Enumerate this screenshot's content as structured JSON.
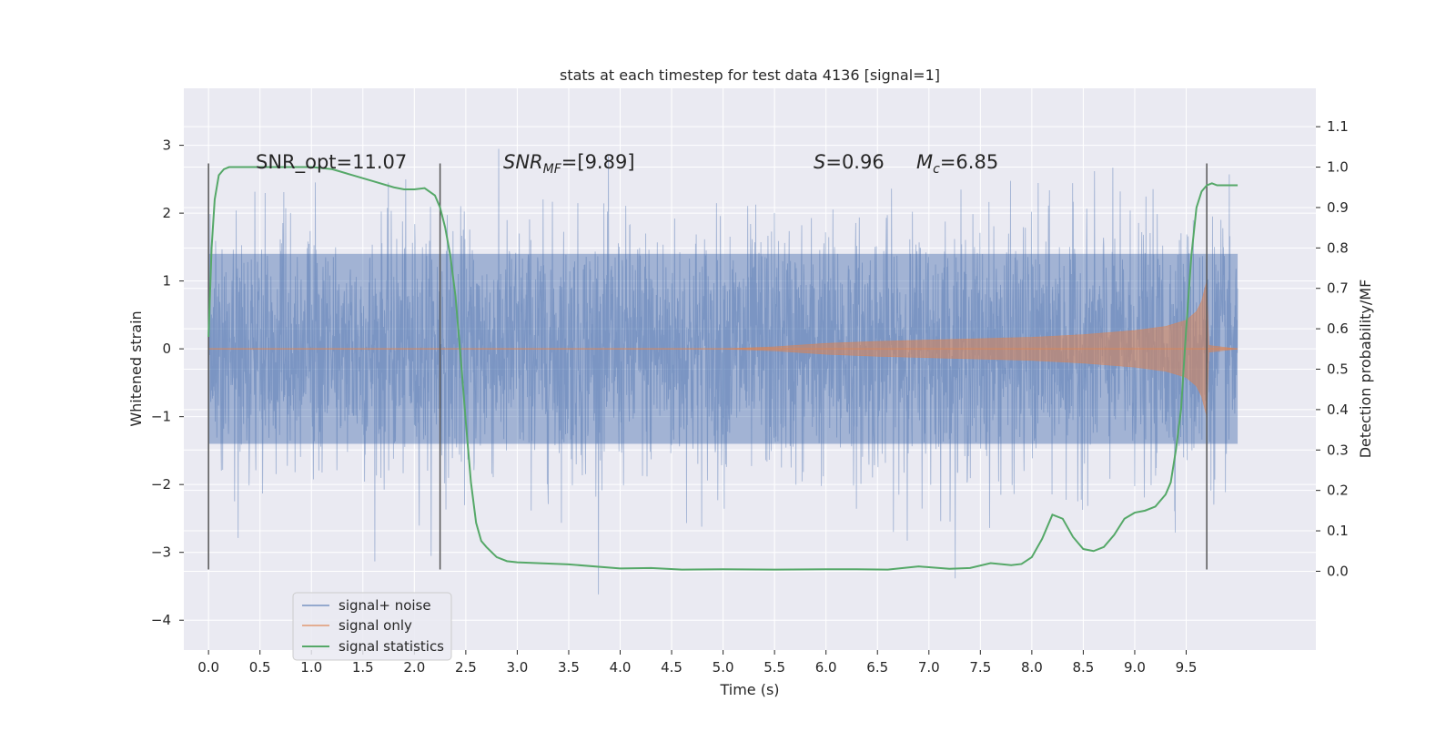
{
  "chart_data": {
    "type": "line",
    "title": "stats at each timestep for test data 4136 [signal=1]",
    "xlabel": "Time (s)",
    "ylabel": "Whitened strain",
    "y2label": "Detection probability/MF",
    "xlim": [
      -0.24,
      10.76
    ],
    "ylim": [
      -4.44,
      3.84
    ],
    "y2lim": [
      -0.195,
      1.195
    ],
    "x_ticks": [
      "0.0",
      "0.5",
      "1.0",
      "1.5",
      "2.0",
      "2.5",
      "3.0",
      "3.5",
      "4.0",
      "4.5",
      "5.0",
      "5.5",
      "6.0",
      "6.5",
      "7.0",
      "7.5",
      "8.0",
      "8.5",
      "9.0",
      "9.5"
    ],
    "x_tick_values": [
      0.0,
      0.5,
      1.0,
      1.5,
      2.0,
      2.5,
      3.0,
      3.5,
      4.0,
      4.5,
      5.0,
      5.5,
      6.0,
      6.5,
      7.0,
      7.5,
      8.0,
      8.5,
      9.0,
      9.5
    ],
    "y_ticks": [
      "3",
      "2",
      "1",
      "0",
      "−1",
      "−2",
      "−3",
      "−4"
    ],
    "y_tick_values": [
      3,
      2,
      1,
      0,
      -1,
      -2,
      -3,
      -4
    ],
    "y2_ticks": [
      "1.1",
      "1.0",
      "0.9",
      "0.8",
      "0.7",
      "0.6",
      "0.5",
      "0.4",
      "0.3",
      "0.2",
      "0.1",
      "0.0"
    ],
    "y2_tick_values": [
      1.1,
      1.0,
      0.9,
      0.8,
      0.7,
      0.6,
      0.5,
      0.4,
      0.3,
      0.2,
      0.1,
      0.0
    ],
    "grid": true,
    "legend_placement": "lower-left",
    "legend": [
      "signal+ noise",
      "signal only",
      "signal statistics"
    ],
    "annotations": {
      "snr_opt": "SNR_opt=11.07",
      "snr_mf_prefix": "SNR",
      "snr_mf_sub": "MF",
      "snr_mf_value": "=[9.89]",
      "s_label": "S",
      "s_value": "=0.96",
      "mc_label": "M",
      "mc_sub": "c",
      "mc_value": "=6.85"
    },
    "vertical_lines_x": [
      0.0,
      2.25,
      9.7
    ],
    "series": [
      {
        "name": "signal+ noise",
        "color": "#4c72b0",
        "x_range": [
          0.0,
          10.0
        ],
        "y_range": [
          -4.1,
          3.5
        ],
        "typical_band": [
          -1.4,
          1.4
        ]
      },
      {
        "name": "signal only",
        "color": "#dd8452",
        "x_range": [
          0.0,
          10.0
        ],
        "envelope": [
          [
            0.0,
            0.0
          ],
          [
            5.0,
            0.0
          ],
          [
            5.5,
            0.03
          ],
          [
            6.0,
            0.08
          ],
          [
            6.5,
            0.11
          ],
          [
            7.0,
            0.13
          ],
          [
            7.5,
            0.15
          ],
          [
            8.0,
            0.17
          ],
          [
            8.5,
            0.21
          ],
          [
            9.0,
            0.27
          ],
          [
            9.3,
            0.33
          ],
          [
            9.5,
            0.42
          ],
          [
            9.6,
            0.55
          ],
          [
            9.65,
            0.7
          ],
          [
            9.7,
            1.0
          ],
          [
            9.72,
            0.05
          ],
          [
            10.0,
            0.0
          ]
        ]
      },
      {
        "name": "signal statistics",
        "color": "#55a868",
        "x": [
          0.0,
          0.03,
          0.06,
          0.1,
          0.15,
          0.2,
          0.3,
          0.5,
          0.8,
          1.0,
          1.2,
          1.4,
          1.6,
          1.8,
          1.9,
          2.0,
          2.1,
          2.2,
          2.25,
          2.3,
          2.35,
          2.4,
          2.45,
          2.5,
          2.55,
          2.6,
          2.65,
          2.7,
          2.8,
          2.9,
          3.0,
          3.5,
          4.0,
          4.3,
          4.6,
          5.0,
          5.5,
          6.0,
          6.3,
          6.6,
          6.9,
          7.2,
          7.4,
          7.6,
          7.8,
          7.9,
          8.0,
          8.1,
          8.2,
          8.3,
          8.4,
          8.5,
          8.6,
          8.7,
          8.8,
          8.9,
          9.0,
          9.1,
          9.2,
          9.3,
          9.35,
          9.4,
          9.45,
          9.5,
          9.55,
          9.6,
          9.65,
          9.7,
          9.75,
          9.8,
          9.85,
          9.9,
          9.95,
          10.0
        ],
        "y": [
          0.58,
          0.8,
          0.92,
          0.98,
          0.995,
          1.0,
          1.0,
          1.0,
          1.0,
          1.0,
          0.995,
          0.98,
          0.965,
          0.95,
          0.945,
          0.945,
          0.948,
          0.93,
          0.9,
          0.85,
          0.78,
          0.68,
          0.53,
          0.37,
          0.22,
          0.12,
          0.075,
          0.06,
          0.035,
          0.025,
          0.022,
          0.017,
          0.007,
          0.008,
          0.004,
          0.005,
          0.004,
          0.005,
          0.005,
          0.004,
          0.012,
          0.006,
          0.008,
          0.02,
          0.015,
          0.018,
          0.035,
          0.08,
          0.14,
          0.13,
          0.085,
          0.055,
          0.05,
          0.06,
          0.09,
          0.13,
          0.145,
          0.15,
          0.16,
          0.19,
          0.22,
          0.3,
          0.4,
          0.6,
          0.78,
          0.9,
          0.94,
          0.955,
          0.96,
          0.955,
          0.955,
          0.955,
          0.955,
          0.955
        ]
      }
    ]
  }
}
